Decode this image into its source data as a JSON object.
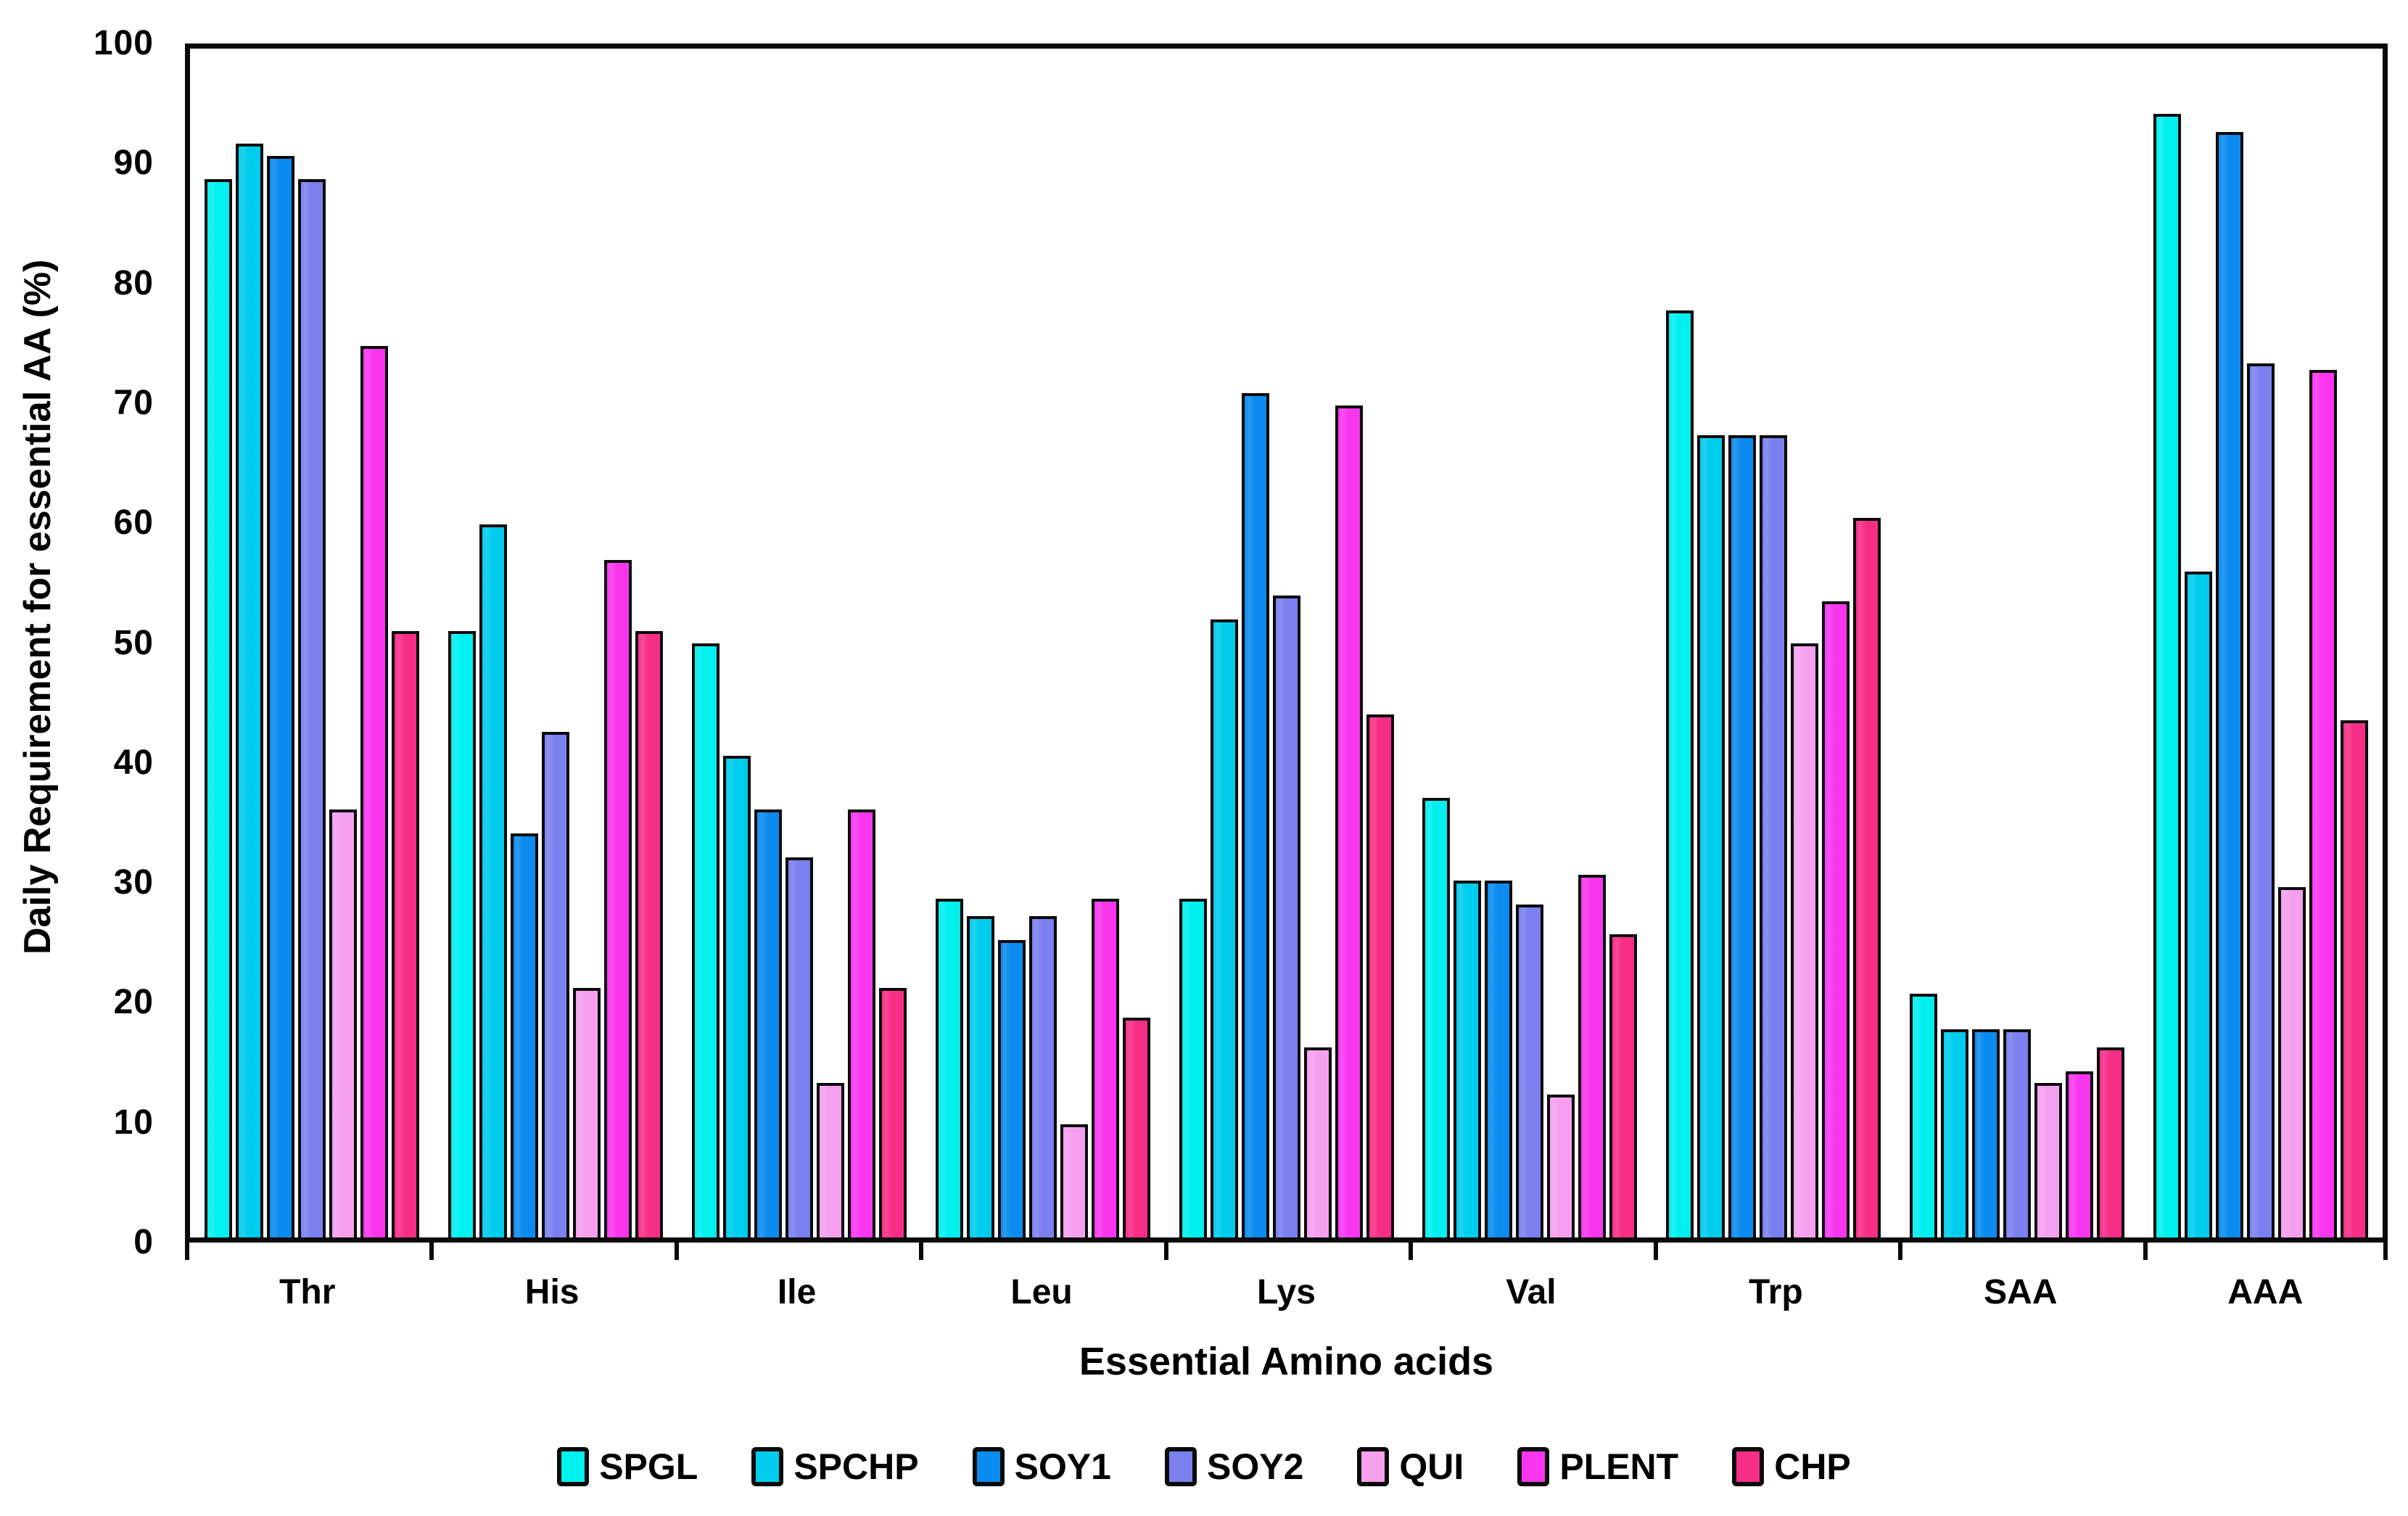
{
  "chart_data": {
    "type": "bar",
    "title": "",
    "xlabel": "Essential Amino acids",
    "ylabel": "Daily Requirement for essential AA (%)",
    "ylim": [
      0,
      100
    ],
    "yticks": [
      0,
      10,
      20,
      30,
      40,
      50,
      60,
      70,
      80,
      90,
      100
    ],
    "grid": false,
    "legend_position": "bottom",
    "categories": [
      "Thr",
      "His",
      "Ile",
      "Leu",
      "Lys",
      "Val",
      "Trp",
      "SAA",
      "AAA"
    ],
    "series": [
      {
        "name": "SPGL",
        "color": "#00F0F0",
        "values": [
          89,
          51,
          50,
          28.5,
          28.5,
          37,
          78,
          20.5,
          94.5
        ]
      },
      {
        "name": "SPCHP",
        "color": "#00CCEE",
        "values": [
          92,
          60,
          40.5,
          27,
          52,
          30,
          67.5,
          17.5,
          56
        ]
      },
      {
        "name": "SOY1",
        "color": "#0B8BEF",
        "values": [
          91,
          34,
          36,
          25,
          71,
          30,
          67.5,
          17.5,
          93
        ]
      },
      {
        "name": "SOY2",
        "color": "#7A80EE",
        "values": [
          89,
          42.5,
          32,
          27,
          54,
          28,
          67.5,
          17.5,
          73.5
        ]
      },
      {
        "name": "QUI",
        "color": "#F59FEF",
        "values": [
          36,
          21,
          13,
          9.5,
          16,
          12,
          50,
          13,
          29.5
        ]
      },
      {
        "name": "PLENT",
        "color": "#F936EE",
        "values": [
          75,
          57,
          36,
          28.5,
          70,
          30.5,
          53.5,
          14,
          73
        ]
      },
      {
        "name": "CHP",
        "color": "#F72E86",
        "values": [
          51,
          51,
          21,
          18.5,
          44,
          25.5,
          60.5,
          16,
          43.5
        ]
      }
    ]
  }
}
